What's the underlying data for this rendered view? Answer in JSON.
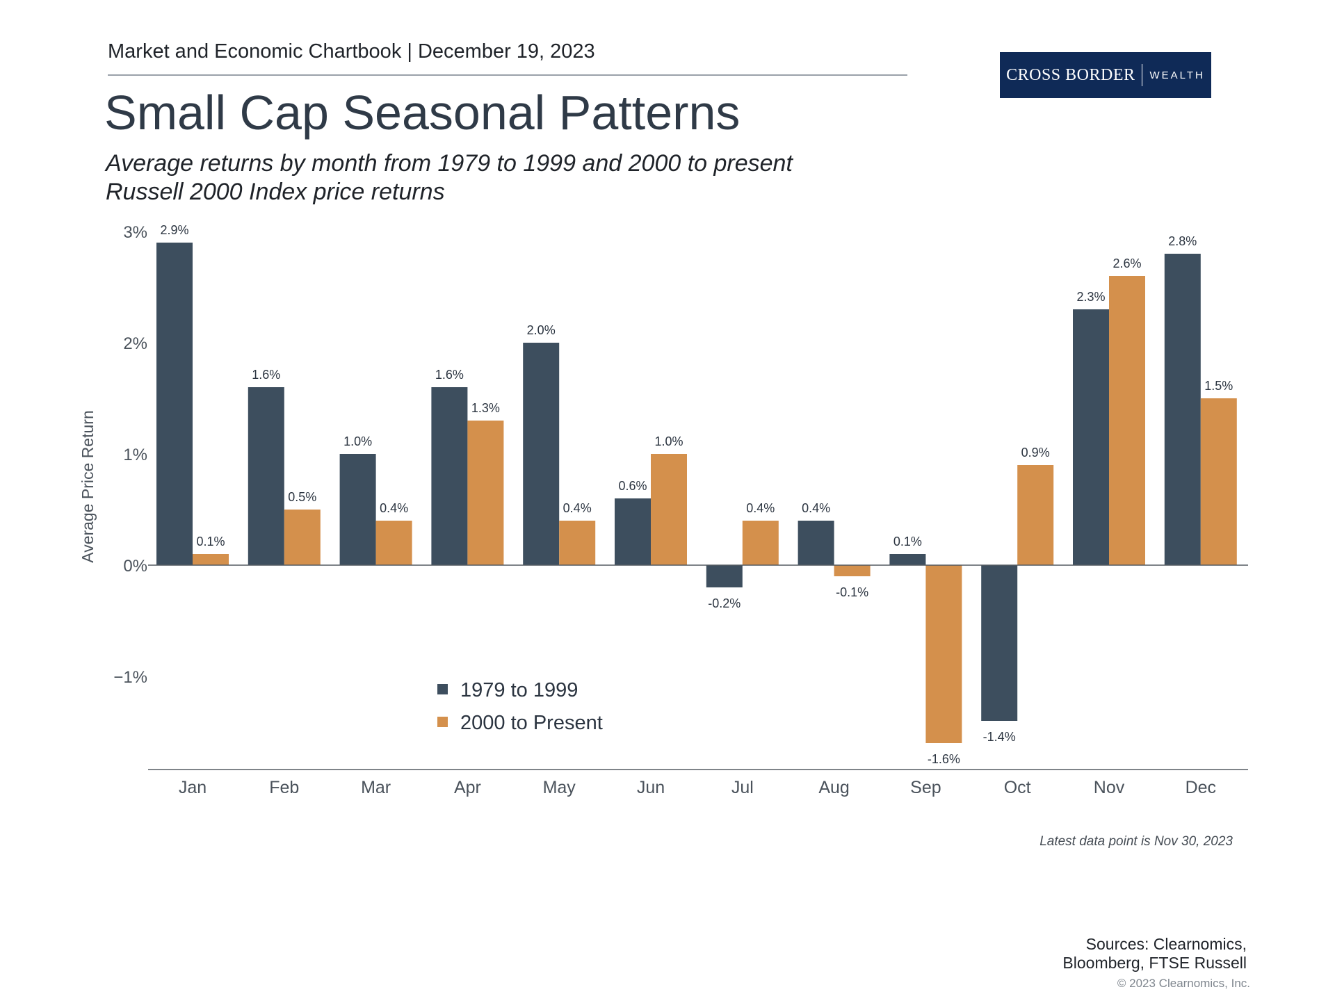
{
  "header": {
    "text": "Market and Economic Chartbook | December 19, 2023"
  },
  "logo": {
    "main": "CROSS BORDER",
    "sub": "WEALTH"
  },
  "title": "Small Cap Seasonal Patterns",
  "subtitle": {
    "line1": "Average returns by month from 1979 to 1999 and 2000 to present",
    "line2": "Russell 2000 Index price returns"
  },
  "chart_data": {
    "type": "bar",
    "categories": [
      "Jan",
      "Feb",
      "Mar",
      "Apr",
      "May",
      "Jun",
      "Jul",
      "Aug",
      "Sep",
      "Oct",
      "Nov",
      "Dec"
    ],
    "series": [
      {
        "name": "1979 to 1999",
        "color": "#3d4e5e",
        "values": [
          2.9,
          1.6,
          1.0,
          1.6,
          2.0,
          0.6,
          -0.2,
          0.4,
          0.1,
          -1.4,
          2.3,
          2.8
        ],
        "labels": [
          "2.9%",
          "1.6%",
          "1.0%",
          "1.6%",
          "2.0%",
          "0.6%",
          "-0.2%",
          "0.4%",
          "0.1%",
          "-1.4%",
          "2.3%",
          "2.8%"
        ]
      },
      {
        "name": "2000 to Present",
        "color": "#d4904c",
        "values": [
          0.1,
          0.5,
          0.4,
          1.3,
          0.4,
          1.0,
          0.4,
          -0.1,
          -1.6,
          0.9,
          2.6,
          1.5
        ],
        "labels": [
          "0.1%",
          "0.5%",
          "0.4%",
          "1.3%",
          "0.4%",
          "1.0%",
          "0.4%",
          "-0.1%",
          "-1.6%",
          "0.9%",
          "2.6%",
          "1.5%"
        ]
      }
    ],
    "ylabel": "Average Price Return",
    "yticks": [
      3,
      2,
      1,
      0,
      -1
    ],
    "ytick_labels": [
      "3%",
      "2%",
      "1%",
      "0%",
      "−1%"
    ],
    "ylim": [
      -1.85,
      3.0
    ],
    "legend_position": "bottom-left"
  },
  "footnote": "Latest data point is Nov 30, 2023",
  "sources": {
    "line1": "Sources: Clearnomics,",
    "line2": "Bloomberg, FTSE Russell"
  },
  "copyright": "© 2023 Clearnomics, Inc."
}
